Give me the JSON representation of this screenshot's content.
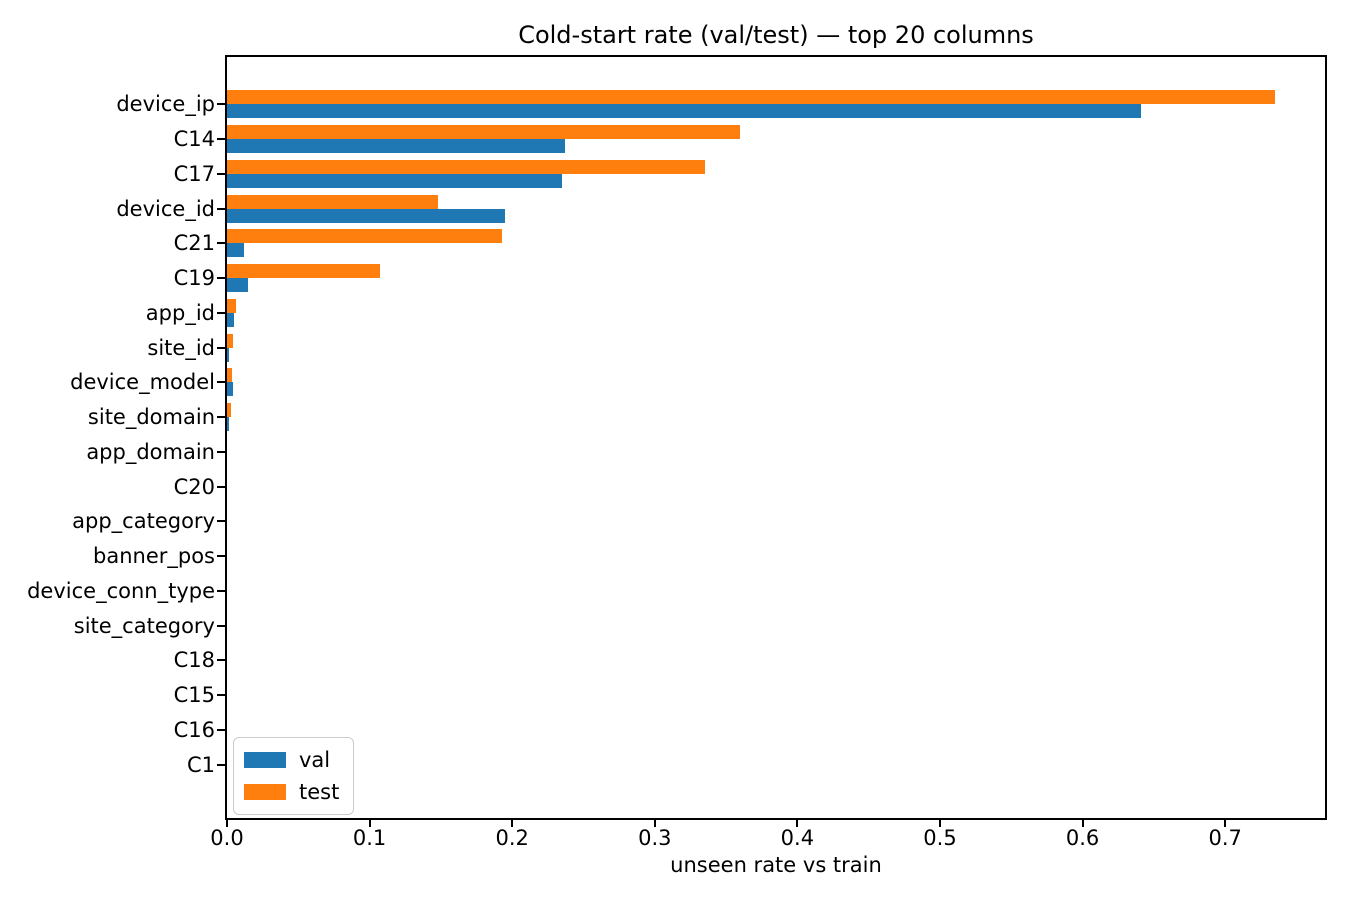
{
  "chart_data": {
    "type": "bar",
    "orientation": "horizontal",
    "title": "Cold-start rate (val/test) — top 20 columns",
    "xlabel": "unseen rate vs train",
    "ylabel": "",
    "categories": [
      "device_ip",
      "C14",
      "C17",
      "device_id",
      "C21",
      "C19",
      "app_id",
      "site_id",
      "device_model",
      "site_domain",
      "app_domain",
      "C20",
      "app_category",
      "banner_pos",
      "device_conn_type",
      "site_category",
      "C18",
      "C15",
      "C16",
      "C1"
    ],
    "series": [
      {
        "name": "val",
        "color": "#1f77b4",
        "values": [
          0.641,
          0.237,
          0.235,
          0.195,
          0.012,
          0.015,
          0.0049,
          0.0015,
          0.0042,
          0.0015,
          0,
          0,
          0,
          0,
          0,
          0,
          0,
          0,
          0,
          0
        ]
      },
      {
        "name": "test",
        "color": "#ff7f0e",
        "values": [
          0.735,
          0.36,
          0.335,
          0.148,
          0.193,
          0.107,
          0.0063,
          0.004,
          0.0035,
          0.0025,
          0,
          0,
          0,
          0,
          0,
          0,
          0,
          0,
          0,
          0
        ]
      }
    ],
    "xlim": [
      0,
      0.77
    ],
    "xticks": [
      0.0,
      0.1,
      0.2,
      0.3,
      0.4,
      0.5,
      0.6,
      0.7
    ],
    "xtick_labels": [
      "0.0",
      "0.1",
      "0.2",
      "0.3",
      "0.4",
      "0.5",
      "0.6",
      "0.7"
    ],
    "grid": false,
    "legend": {
      "position": "lower left",
      "entries": [
        "val",
        "test"
      ]
    },
    "frame_color": "#000000",
    "background_color": "#ffffff"
  }
}
